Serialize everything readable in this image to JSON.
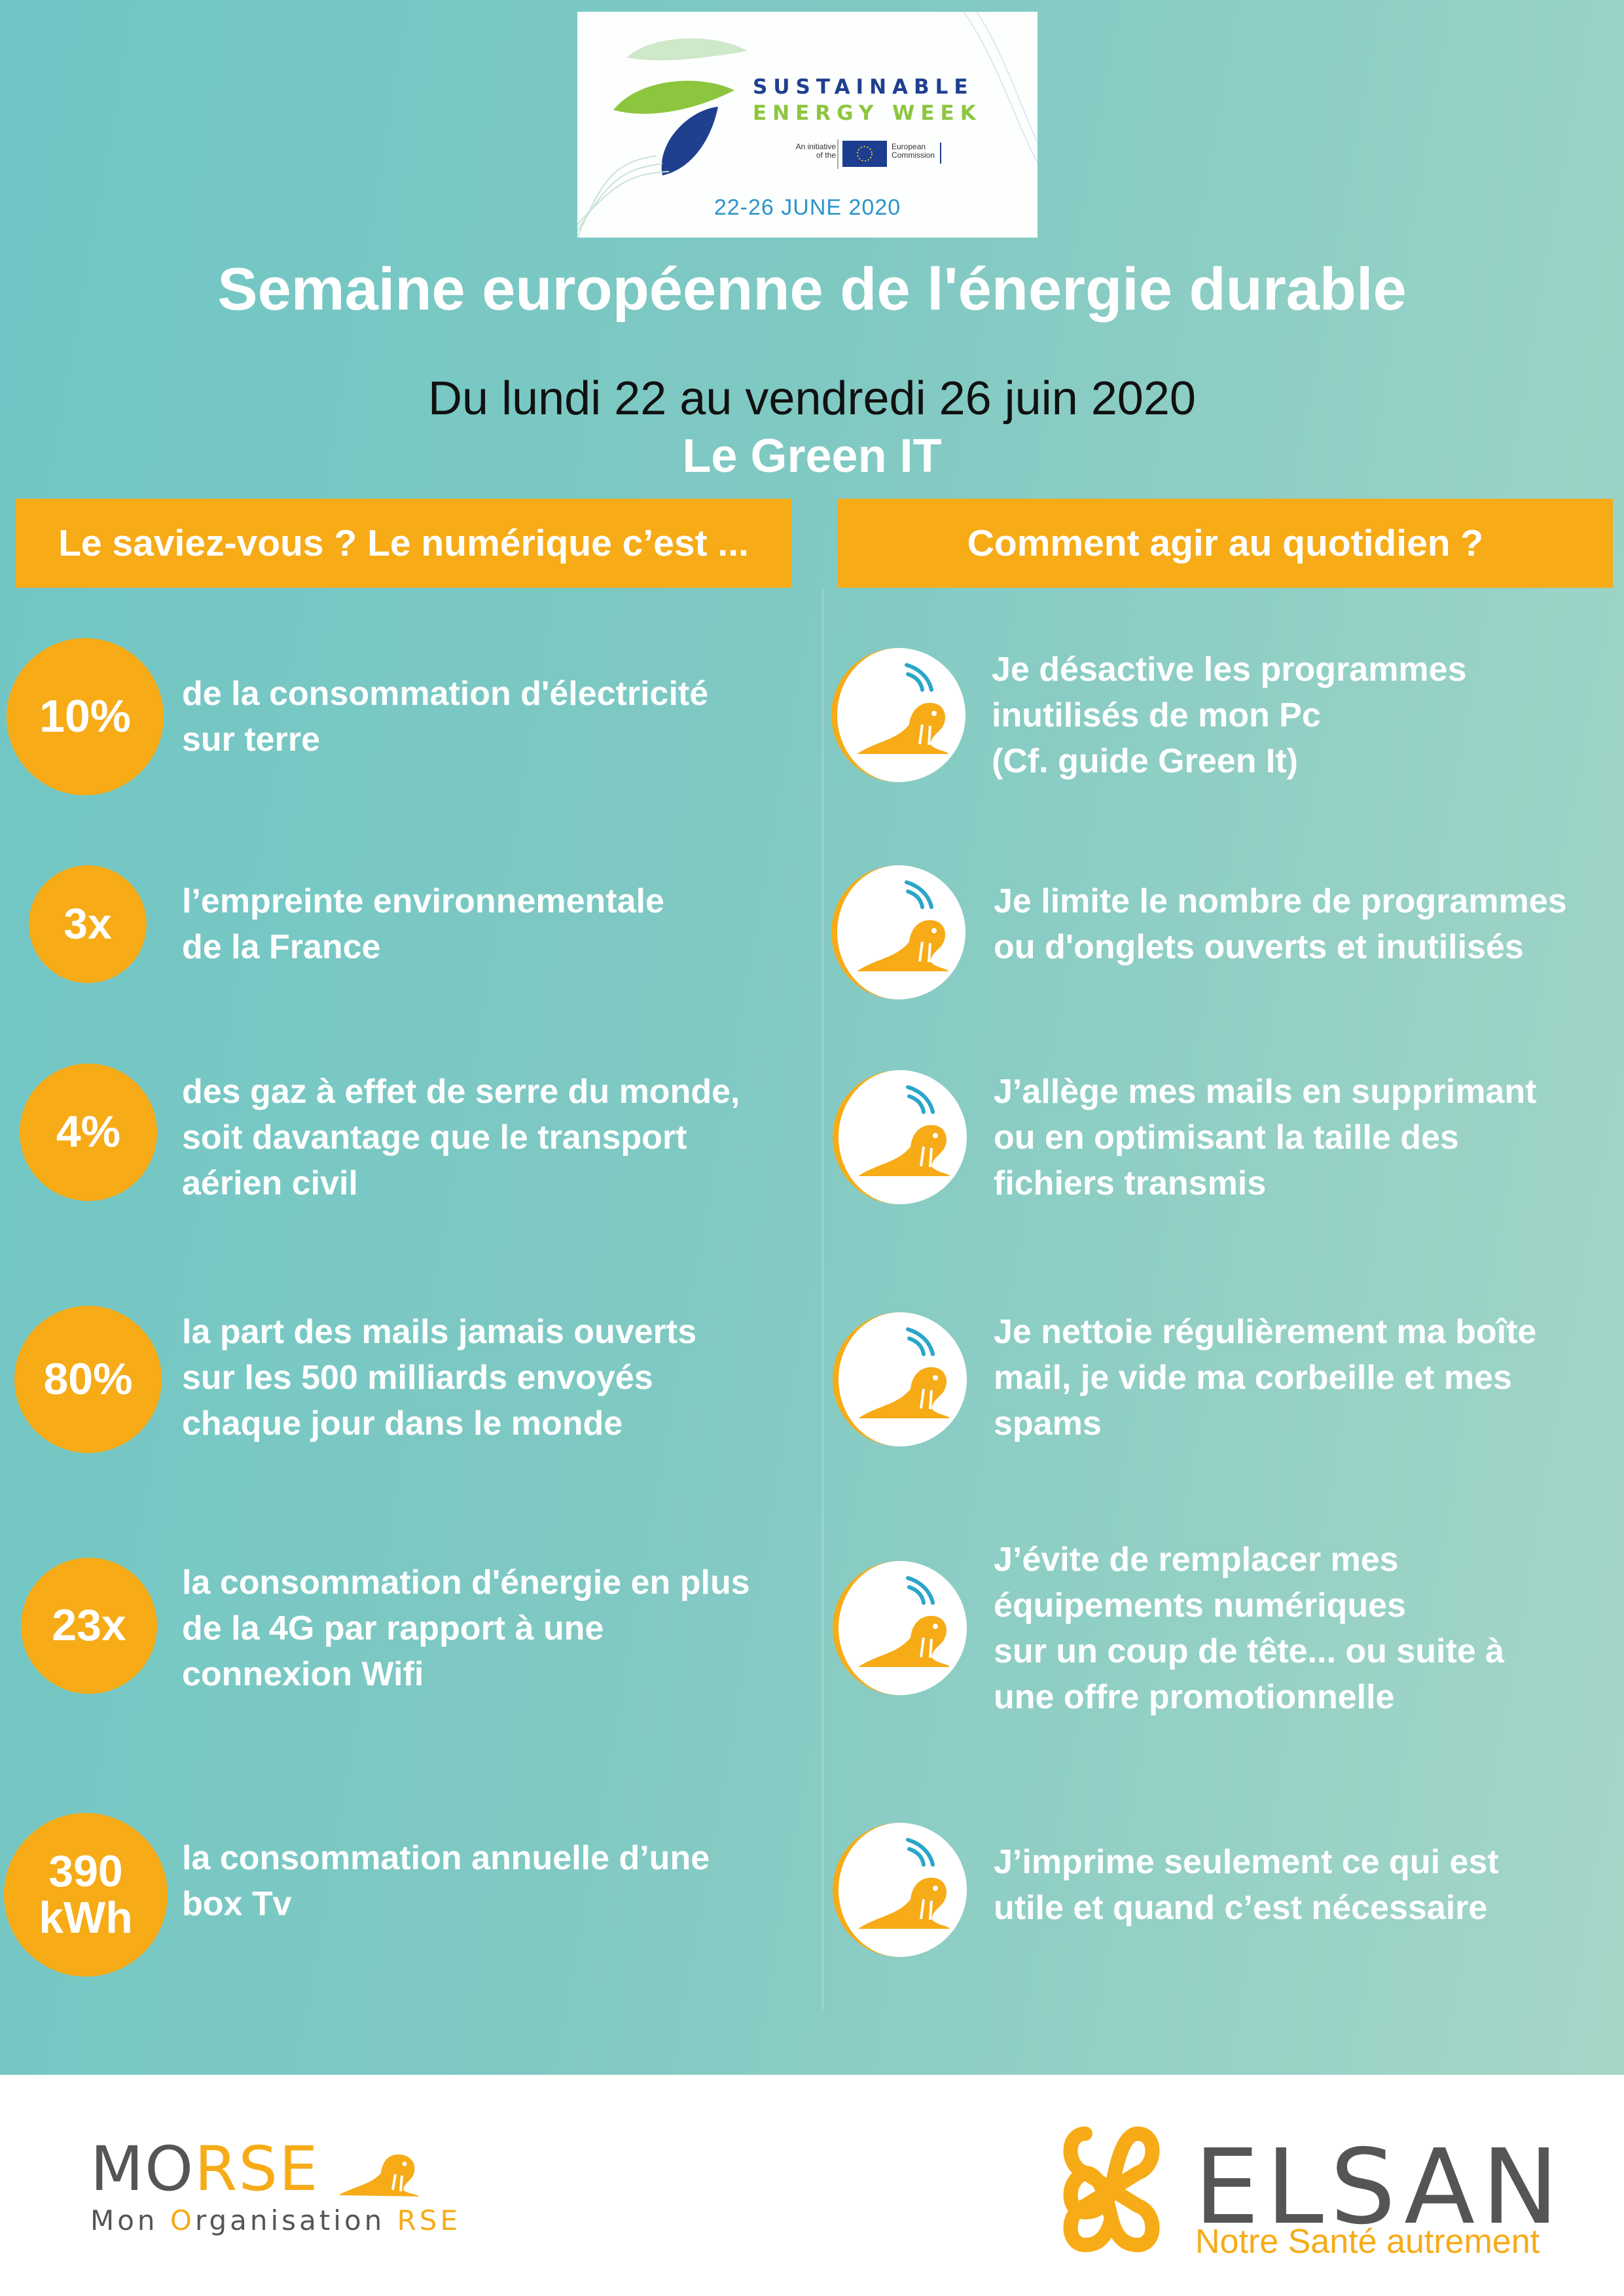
{
  "logo": {
    "line1": "SUSTAINABLE",
    "line2": "ENERGY WEEK",
    "initiative": "An initiative of the",
    "commission": "European Commission",
    "date": "22-26 JUNE 2020"
  },
  "header": {
    "title": "Semaine européenne de l'énergie durable",
    "dates": "Du lundi 22 au vendredi 26 juin 2020",
    "subtitle": "Le Green IT"
  },
  "columns": {
    "left_title": "Le saviez-vous ? Le numérique c’est ...",
    "right_title": "Comment agir au quotidien ?"
  },
  "stats": [
    {
      "value": "10%",
      "text": "de la consommation d'électricité\nsur terre"
    },
    {
      "value": "3x",
      "text": "l’empreinte environnementale\nde la France"
    },
    {
      "value": "4%",
      "text": "des gaz à effet de serre du monde,\nsoit davantage que le transport\naérien civil"
    },
    {
      "value": "80%",
      "text": "la part des mails jamais ouverts\nsur les 500 milliards envoyés\nchaque jour dans le monde"
    },
    {
      "value": "23x",
      "text": "la consommation d'énergie en plus\nde la 4G par rapport à une\nconnexion Wifi"
    },
    {
      "value": "390\nkWh",
      "text": "la consommation annuelle d’une\nbox Tv"
    }
  ],
  "actions": [
    {
      "text": "Je désactive les programmes\n inutilisés de mon Pc\n(Cf. guide Green It)"
    },
    {
      "text": "Je limite le nombre de programmes\nou d'onglets ouverts et inutilisés"
    },
    {
      "text": "J’allège mes mails en supprimant\nou en optimisant la taille des\nfichiers transmis"
    },
    {
      "text": "Je nettoie régulièrement ma boîte\nmail, je vide ma corbeille et mes\nspams"
    },
    {
      "text": "J’évite de remplacer mes\néquipements numériques\nsur un coup de tête... ou suite à\nune offre promotionnelle"
    },
    {
      "text": "J’imprime seulement ce qui est\nutile et quand c’est nécessaire"
    }
  ],
  "footer": {
    "morse_part1": "MO",
    "morse_part2": "RSE",
    "morse_sub_a": "Mon ",
    "morse_sub_b": "O",
    "morse_sub_c": "rganisation ",
    "morse_sub_d": "RSE",
    "elsan_name": "ELSAN",
    "elsan_tagline": "Notre Santé autrement"
  },
  "colors": {
    "accent": "#f6ab17",
    "teal": "#7ccac4",
    "white": "#ffffff"
  }
}
